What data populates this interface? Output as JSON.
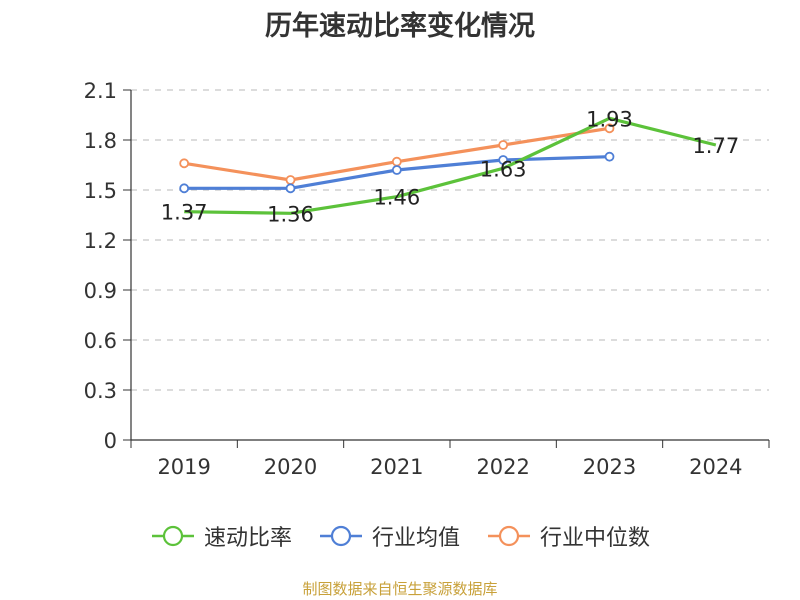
{
  "chart_data": {
    "type": "line",
    "title": "历年速动比率变化情况",
    "categories": [
      "2019",
      "2020",
      "2021",
      "2022",
      "2023",
      "2024"
    ],
    "y_ticks": [
      "0",
      "0.3",
      "0.6",
      "0.9",
      "1.2",
      "1.5",
      "1.8",
      "2.1"
    ],
    "ylim": [
      0,
      2.1
    ],
    "grid": true,
    "legend_position": "bottom",
    "series": [
      {
        "name": "速动比率",
        "color": "#5cc23a",
        "values": [
          1.37,
          1.36,
          1.46,
          1.63,
          1.93,
          1.77
        ],
        "labels": [
          "1.37",
          "1.36",
          "1.46",
          "1.63",
          "1.93",
          "1.77"
        ],
        "show_markers": false
      },
      {
        "name": "行业均值",
        "color": "#4f7fd6",
        "values": [
          1.51,
          1.51,
          1.62,
          1.68,
          1.7,
          null
        ],
        "show_markers": true
      },
      {
        "name": "行业中位数",
        "color": "#f4915b",
        "values": [
          1.66,
          1.56,
          1.67,
          1.77,
          1.87,
          null
        ],
        "show_markers": true
      }
    ]
  },
  "footer": {
    "source": "制图数据来自恒生聚源数据库"
  }
}
